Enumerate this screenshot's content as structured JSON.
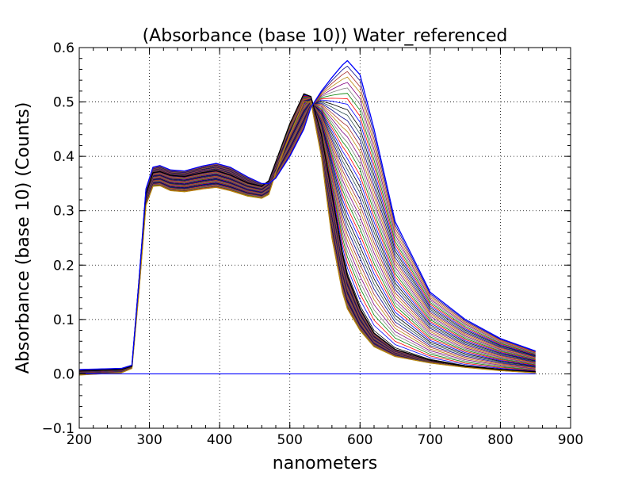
{
  "chart_data": {
    "type": "line",
    "title": "(Absorbance (base 10)) Water_referenced",
    "xlabel": "nanometers",
    "ylabel": "Absorbance (base 10) (Counts)",
    "xlim": [
      200,
      900
    ],
    "ylim": [
      -0.1,
      0.6
    ],
    "x_ticks": [
      200,
      300,
      400,
      500,
      600,
      700,
      800,
      900
    ],
    "y_ticks": [
      -0.1,
      0.0,
      0.1,
      0.2,
      0.3,
      0.4,
      0.5,
      0.6
    ],
    "x_tick_labels": [
      "200",
      "300",
      "400",
      "500",
      "600",
      "700",
      "800",
      "900"
    ],
    "y_tick_labels": [
      "−0.1",
      "0.0",
      "0.1",
      "0.2",
      "0.3",
      "0.4",
      "0.5",
      "0.6"
    ],
    "grid": true,
    "grid_style": "dotted",
    "legend": "none",
    "series_count_approx": 80,
    "series_colors": [
      "#000000",
      "#0000ff",
      "#ff0000",
      "#008000",
      "#808080",
      "#800080",
      "#b8860b",
      "#a52a2a",
      "#00008b",
      "#2f4f4f"
    ],
    "x": [
      200,
      260,
      275,
      285,
      295,
      305,
      315,
      330,
      350,
      375,
      395,
      415,
      440,
      460,
      470,
      480,
      500,
      520,
      530,
      545,
      560,
      575,
      582,
      600,
      620,
      650,
      700,
      750,
      800,
      850
    ],
    "series": [
      {
        "color": "#b8860b",
        "values": [
          -0.002,
          0.002,
          0.01,
          0.15,
          0.31,
          0.345,
          0.346,
          0.337,
          0.335,
          0.34,
          0.343,
          0.337,
          0.327,
          0.323,
          0.33,
          0.37,
          0.44,
          0.5,
          0.5,
          0.4,
          0.25,
          0.15,
          0.12,
          0.08,
          0.05,
          0.032,
          0.02,
          0.012,
          0.006,
          0.002
        ]
      },
      {
        "color": "#000000",
        "values": [
          0.005,
          0.008,
          0.014,
          0.17,
          0.33,
          0.37,
          0.372,
          0.365,
          0.363,
          0.37,
          0.374,
          0.366,
          0.351,
          0.345,
          0.355,
          0.39,
          0.46,
          0.515,
          0.51,
          0.44,
          0.33,
          0.22,
          0.18,
          0.12,
          0.075,
          0.045,
          0.025,
          0.014,
          0.008,
          0.004
        ]
      },
      {
        "color": "#0000ff",
        "values": [
          0.008,
          0.01,
          0.016,
          0.17,
          0.34,
          0.38,
          0.383,
          0.375,
          0.373,
          0.382,
          0.387,
          0.38,
          0.362,
          0.35,
          0.35,
          0.36,
          0.4,
          0.45,
          0.49,
          0.52,
          0.545,
          0.568,
          0.576,
          0.55,
          0.45,
          0.28,
          0.15,
          0.1,
          0.065,
          0.042
        ]
      }
    ],
    "zero_line": {
      "y": 0.0,
      "from": 200,
      "to": 850,
      "color": "#0000ff"
    }
  }
}
